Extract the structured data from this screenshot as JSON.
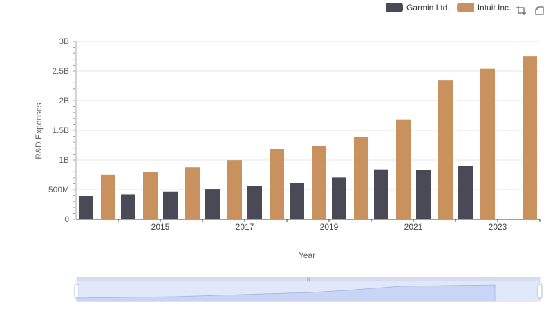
{
  "legend": {
    "items": [
      {
        "label": "Garmin Ltd.",
        "color": "#4a4a56"
      },
      {
        "label": "Intuit Inc.",
        "color": "#c8915e"
      }
    ]
  },
  "toolbox": {
    "icons": [
      "zoom-icon",
      "restore-icon"
    ]
  },
  "chart_data": {
    "type": "bar",
    "xlabel": "Year",
    "ylabel": "R&D Expenses",
    "categories": [
      "2014",
      "2015",
      "2016",
      "2017",
      "2018",
      "2019",
      "2020",
      "2021",
      "2022",
      "2023",
      "2024"
    ],
    "x_tick_labels": [
      "2015",
      "2017",
      "2019",
      "2021",
      "2023"
    ],
    "y_tick_labels": [
      "0",
      "500M",
      "1B",
      "1.5B",
      "2B",
      "2.5B",
      "3B"
    ],
    "ylim": [
      0,
      3000000000
    ],
    "grid": true,
    "legend_position": "top-right",
    "series": [
      {
        "name": "Garmin Ltd.",
        "color": "#4a4a56",
        "values": [
          395000000,
          425000000,
          468000000,
          511000000,
          567000000,
          605000000,
          705000000,
          841000000,
          836000000,
          907000000,
          null
        ]
      },
      {
        "name": "Intuit Inc.",
        "color": "#c8915e",
        "values": [
          758000000,
          798000000,
          881000000,
          998000000,
          1186000000,
          1233000000,
          1392000000,
          1678000000,
          2347000000,
          2539000000,
          2754000000
        ]
      }
    ]
  },
  "data_zoom": {
    "start": 0,
    "end": 100
  }
}
